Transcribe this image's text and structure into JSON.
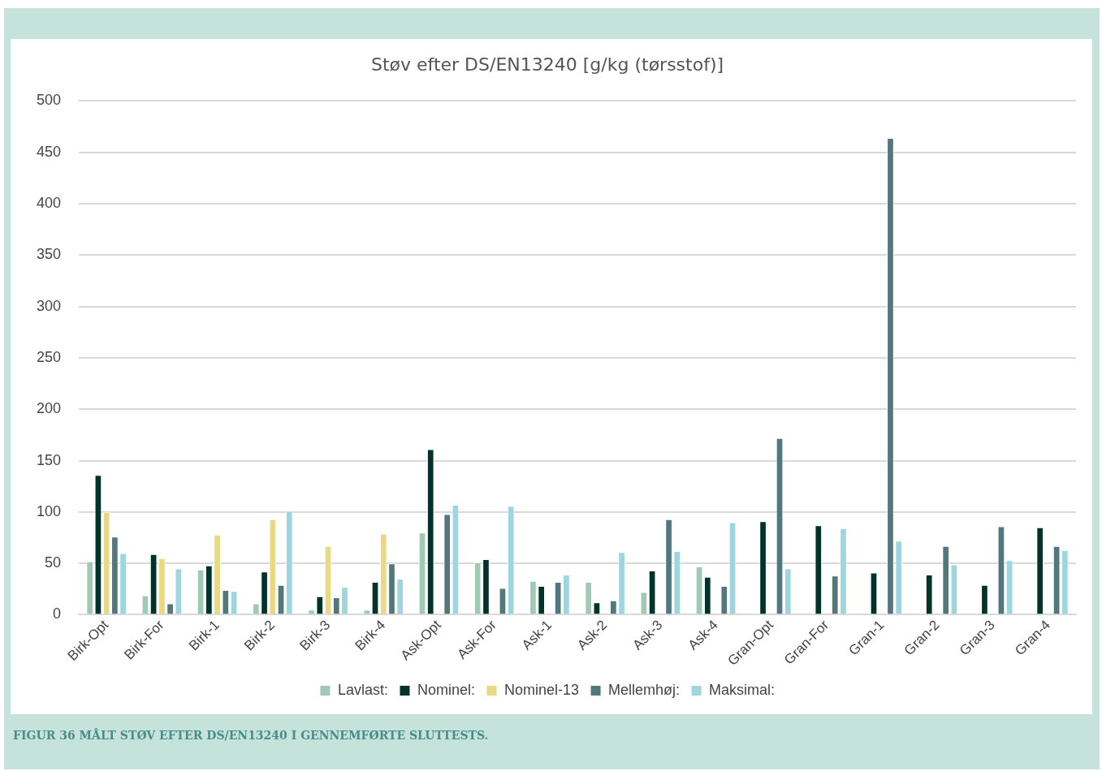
{
  "chart_data": {
    "type": "bar",
    "title": "Støv efter DS/EN13240 [g/kg (tørsstof)]",
    "categories": [
      "Birk-Opt",
      "Birk-For",
      "Birk-1",
      "Birk-2",
      "Birk-3",
      "Birk-4",
      "Ask-Opt",
      "Ask-For",
      "Ask-1",
      "Ask-2",
      "Ask-3",
      "Ask-4",
      "Gran-Opt",
      "Gran-For",
      "Gran-1",
      "Gran-2",
      "Gran-3",
      "Gran-4"
    ],
    "series": [
      {
        "name": "Lavlast:",
        "color": "#a1cab6",
        "values": [
          52,
          19,
          44,
          11,
          5,
          5,
          80,
          51,
          33,
          32,
          22,
          47,
          null,
          null,
          null,
          null,
          null,
          null
        ]
      },
      {
        "name": "Nominel:",
        "color": "#02332b",
        "values": [
          136,
          59,
          48,
          42,
          18,
          32,
          161,
          54,
          28,
          12,
          43,
          37,
          91,
          87,
          41,
          39,
          29,
          85
        ]
      },
      {
        "name": "Nominel-13",
        "color": "#e8d984",
        "values": [
          100,
          55,
          78,
          93,
          67,
          79,
          null,
          null,
          null,
          null,
          null,
          null,
          null,
          null,
          null,
          null,
          null,
          null
        ]
      },
      {
        "name": "Mellemhøj:",
        "color": "#52777d",
        "values": [
          76,
          11,
          24,
          29,
          17,
          50,
          98,
          26,
          32,
          14,
          93,
          28,
          172,
          38,
          464,
          67,
          86,
          67
        ]
      },
      {
        "name": "Maksimal:",
        "color": "#9dd6df",
        "values": [
          60,
          45,
          23,
          101,
          27,
          35,
          107,
          106,
          39,
          61,
          62,
          90,
          45,
          84,
          72,
          49,
          53,
          63
        ]
      }
    ],
    "ylim": [
      0,
      500
    ],
    "yticks": [
      0,
      50,
      100,
      150,
      200,
      250,
      300,
      350,
      400,
      450,
      500
    ],
    "grid": "y",
    "legend": "bottom",
    "annotations": [
      "FIGUR 36 MÅLT STØV EFTER DS/EN13240 I GENNEMFØRTE SLUTTESTS."
    ]
  }
}
